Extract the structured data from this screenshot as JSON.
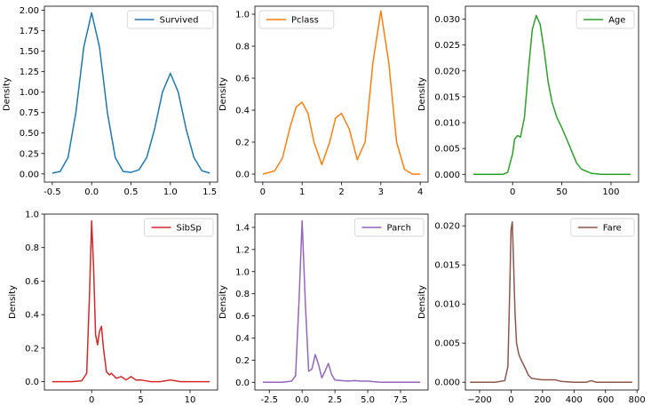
{
  "chart_data": [
    {
      "type": "line",
      "name": "Survived",
      "ylabel": "Density",
      "color": "#1f77b4",
      "legend": "upper right",
      "xlim": [
        -0.6,
        1.6
      ],
      "ylim": [
        -0.1,
        2.05
      ],
      "xticks": [
        -0.5,
        0.0,
        0.5,
        1.0,
        1.5
      ],
      "xtick_labels": [
        "-0.5",
        "0.0",
        "0.5",
        "1.0",
        "1.5"
      ],
      "yticks": [
        0.0,
        0.25,
        0.5,
        0.75,
        1.0,
        1.25,
        1.5,
        1.75,
        2.0
      ],
      "ytick_labels": [
        "0.00",
        "0.25",
        "0.50",
        "0.75",
        "1.00",
        "1.25",
        "1.50",
        "1.75",
        "2.00"
      ],
      "x": [
        -0.5,
        -0.4,
        -0.3,
        -0.2,
        -0.1,
        0.0,
        0.1,
        0.2,
        0.3,
        0.4,
        0.5,
        0.6,
        0.7,
        0.8,
        0.9,
        1.0,
        1.1,
        1.2,
        1.3,
        1.4,
        1.5
      ],
      "y": [
        0.01,
        0.03,
        0.2,
        0.75,
        1.55,
        1.97,
        1.55,
        0.75,
        0.2,
        0.03,
        0.02,
        0.05,
        0.2,
        0.55,
        1.0,
        1.23,
        1.0,
        0.55,
        0.2,
        0.04,
        0.01
      ]
    },
    {
      "type": "line",
      "name": "Pclass",
      "ylabel": "Density",
      "color": "#ff7f0e",
      "legend": "upper left",
      "xlim": [
        -0.2,
        4.2
      ],
      "ylim": [
        -0.05,
        1.05
      ],
      "xticks": [
        0,
        1,
        2,
        3,
        4
      ],
      "xtick_labels": [
        "0",
        "1",
        "2",
        "3",
        "4"
      ],
      "yticks": [
        0.0,
        0.2,
        0.4,
        0.6,
        0.8,
        1.0
      ],
      "ytick_labels": [
        "0.0",
        "0.2",
        "0.4",
        "0.6",
        "0.8",
        "1.0"
      ],
      "x": [
        0.0,
        0.3,
        0.5,
        0.7,
        0.85,
        1.0,
        1.15,
        1.3,
        1.5,
        1.7,
        1.85,
        2.0,
        2.2,
        2.4,
        2.6,
        2.8,
        3.0,
        3.2,
        3.4,
        3.6,
        3.8,
        4.0
      ],
      "y": [
        0.0,
        0.02,
        0.1,
        0.3,
        0.42,
        0.45,
        0.38,
        0.2,
        0.06,
        0.2,
        0.35,
        0.38,
        0.28,
        0.09,
        0.2,
        0.7,
        1.02,
        0.7,
        0.2,
        0.03,
        0.0,
        0.0
      ]
    },
    {
      "type": "line",
      "name": "Age",
      "ylabel": "Density",
      "color": "#2ca02c",
      "legend": "upper right",
      "xlim": [
        -48,
        128
      ],
      "ylim": [
        -0.0015,
        0.0325
      ],
      "xticks": [
        0,
        50,
        100
      ],
      "xtick_labels": [
        "0",
        "50",
        "100"
      ],
      "yticks": [
        0.0,
        0.005,
        0.01,
        0.015,
        0.02,
        0.025,
        0.03
      ],
      "ytick_labels": [
        "0.000",
        "0.005",
        "0.010",
        "0.015",
        "0.020",
        "0.025",
        "0.030"
      ],
      "x": [
        -40,
        -20,
        -10,
        -5,
        0,
        2,
        5,
        8,
        12,
        16,
        20,
        24,
        28,
        32,
        36,
        40,
        45,
        50,
        55,
        60,
        65,
        70,
        80,
        90,
        100,
        120
      ],
      "y": [
        0.0,
        0.0,
        0.0,
        0.0004,
        0.004,
        0.0068,
        0.0075,
        0.0072,
        0.011,
        0.02,
        0.028,
        0.0307,
        0.029,
        0.024,
        0.018,
        0.014,
        0.011,
        0.009,
        0.0068,
        0.0045,
        0.0022,
        0.001,
        0.0002,
        0.0,
        0.0,
        0.0
      ]
    },
    {
      "type": "line",
      "name": "SibSp",
      "ylabel": "Density",
      "color": "#d62728",
      "legend": "upper right",
      "xlim": [
        -4.8,
        12.8
      ],
      "ylim": [
        -0.05,
        1.0
      ],
      "xticks": [
        0,
        5,
        10
      ],
      "xtick_labels": [
        "0",
        "5",
        "10"
      ],
      "yticks": [
        0.0,
        0.2,
        0.4,
        0.6,
        0.8,
        1.0
      ],
      "ytick_labels": [
        "0.0",
        "0.2",
        "0.4",
        "0.6",
        "0.8",
        "1.0"
      ],
      "x": [
        -4,
        -2,
        -1,
        -0.5,
        -0.2,
        0.0,
        0.2,
        0.4,
        0.6,
        0.8,
        1.0,
        1.2,
        1.5,
        1.8,
        2.0,
        2.5,
        3.0,
        3.5,
        4.0,
        4.5,
        5.0,
        6.0,
        7.0,
        7.5,
        8.0,
        8.5,
        9.0,
        10,
        12
      ],
      "y": [
        0.0,
        0.0,
        0.005,
        0.05,
        0.55,
        0.96,
        0.68,
        0.28,
        0.22,
        0.3,
        0.33,
        0.2,
        0.06,
        0.04,
        0.05,
        0.02,
        0.03,
        0.01,
        0.03,
        0.01,
        0.01,
        0.0,
        0.0,
        0.005,
        0.01,
        0.005,
        0.0,
        0.0,
        0.0
      ]
    },
    {
      "type": "line",
      "name": "Parch",
      "ylabel": "Density",
      "color": "#9467bd",
      "legend": "upper right",
      "xlim": [
        -3.6,
        9.6
      ],
      "ylim": [
        -0.07,
        1.52
      ],
      "xticks": [
        -2.5,
        0.0,
        2.5,
        5.0,
        7.5
      ],
      "xtick_labels": [
        "-2.5",
        "0.0",
        "2.5",
        "5.0",
        "7.5"
      ],
      "yticks": [
        0.0,
        0.2,
        0.4,
        0.6,
        0.8,
        1.0,
        1.2,
        1.4
      ],
      "ytick_labels": [
        "0.0",
        "0.2",
        "0.4",
        "0.6",
        "0.8",
        "1.0",
        "1.2",
        "1.4"
      ],
      "x": [
        -3,
        -1.5,
        -0.8,
        -0.5,
        -0.25,
        0.0,
        0.25,
        0.5,
        0.75,
        1.0,
        1.25,
        1.5,
        1.75,
        2.0,
        2.25,
        2.5,
        3.0,
        3.5,
        4.0,
        4.5,
        5.0,
        5.5,
        6.0,
        7.0,
        9.0
      ],
      "y": [
        0.0,
        0.0,
        0.01,
        0.06,
        0.7,
        1.46,
        0.7,
        0.1,
        0.12,
        0.25,
        0.16,
        0.04,
        0.1,
        0.17,
        0.07,
        0.02,
        0.015,
        0.01,
        0.015,
        0.01,
        0.01,
        0.005,
        0.0,
        0.0,
        0.0
      ]
    },
    {
      "type": "line",
      "name": "Fare",
      "ylabel": "Density",
      "color": "#8c564b",
      "legend": "upper right",
      "xlim": [
        -290,
        810
      ],
      "ylim": [
        -0.001,
        0.0215
      ],
      "xticks": [
        -200,
        0,
        200,
        400,
        600,
        800
      ],
      "xtick_labels": [
        "−200",
        "0",
        "200",
        "400",
        "600",
        "800"
      ],
      "yticks": [
        0.0,
        0.005,
        0.01,
        0.015,
        0.02
      ],
      "ytick_labels": [
        "0.000",
        "0.005",
        "0.010",
        "0.015",
        "0.020"
      ],
      "x": [
        -260,
        -100,
        -40,
        -20,
        -8,
        0,
        8,
        15,
        25,
        35,
        50,
        70,
        90,
        110,
        130,
        160,
        200,
        250,
        280,
        320,
        400,
        480,
        510,
        540,
        600,
        770
      ],
      "y": [
        0.0,
        0.0,
        0.0002,
        0.002,
        0.012,
        0.0195,
        0.0205,
        0.016,
        0.009,
        0.005,
        0.0035,
        0.0026,
        0.0018,
        0.0009,
        0.0005,
        0.0004,
        0.0003,
        0.0003,
        0.0003,
        0.0001,
        0.0,
        0.0,
        0.0002,
        0.0,
        0.0,
        0.0
      ]
    }
  ]
}
